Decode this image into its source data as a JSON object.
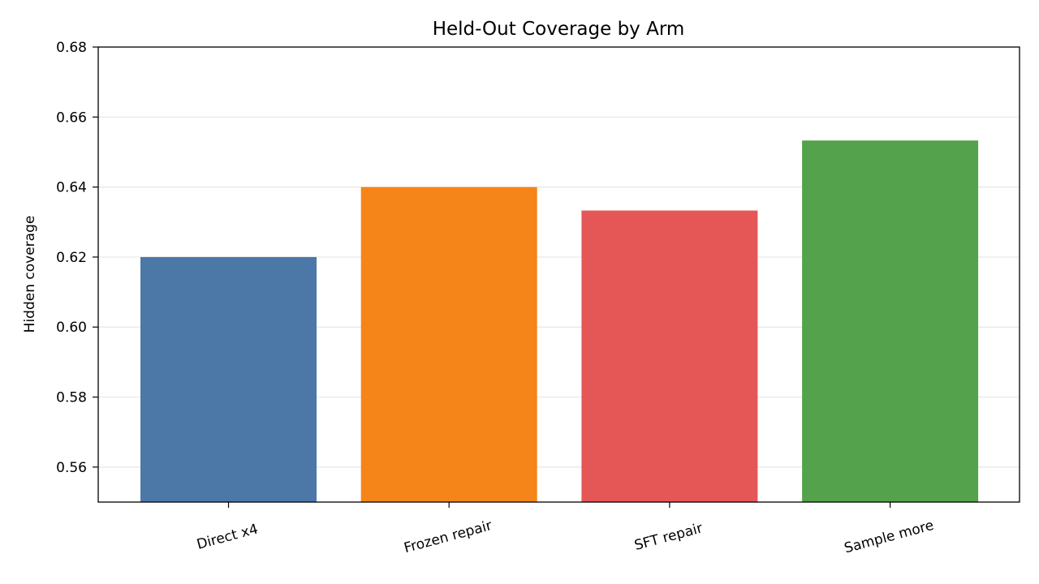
{
  "chart_data": {
    "type": "bar",
    "title": "Held-Out Coverage by Arm",
    "xlabel": "",
    "ylabel": "Hidden coverage",
    "categories": [
      "Direct x4",
      "Frozen repair",
      "SFT repair",
      "Sample more"
    ],
    "values": [
      0.62,
      0.64,
      0.6333,
      0.6533
    ],
    "colors": [
      "#4c78a8",
      "#f58518",
      "#e45756",
      "#54a24b"
    ],
    "ylim": [
      0.55,
      0.68
    ],
    "yticks": [
      0.56,
      0.58,
      0.6,
      0.62,
      0.64,
      0.66,
      0.68
    ],
    "ytick_labels": [
      "0.56",
      "0.58",
      "0.60",
      "0.62",
      "0.64",
      "0.66",
      "0.68"
    ],
    "grid": "y",
    "legend": "none"
  }
}
